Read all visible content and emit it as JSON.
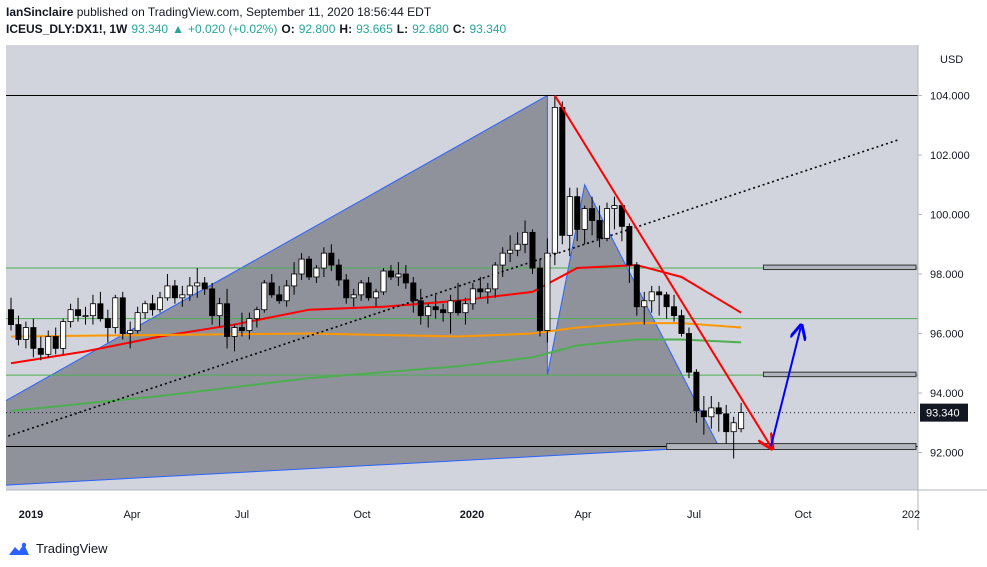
{
  "header": {
    "author": "IanSinclaire",
    "published": "published on TradingView.com, September 11, 2020 18:56:44 EDT",
    "symbol": "ICEUS_DLY:DX1!, 1W",
    "last": "93.340",
    "arrow": "▲",
    "change": "+0.020 (+0.02%)",
    "o_label": "O:",
    "o": "92.800",
    "h_label": "H:",
    "h": "93.665",
    "l_label": "L:",
    "l": "92.680",
    "c_label": "C:",
    "c": "93.340"
  },
  "footer": {
    "brand": "TradingView",
    "logo_icon": "tradingview-logo-icon"
  },
  "colors": {
    "background": "#d1d4dc",
    "bull_candle": "#ffffff",
    "bear_candle": "#000000",
    "pattern_fill": "#787b86",
    "pattern_edge": "#2962ff",
    "ma_red": "#ff0000",
    "ma_orange": "#ff9800",
    "ma_green": "#4caf50",
    "trendline_red": "#ff0000",
    "projection_blue": "#0000ff",
    "hline_green": "#4caf50",
    "price_tag_bg": "#131722"
  },
  "chart_data": {
    "type": "candlestick",
    "currency": "USD",
    "ylim": [
      90.6,
      105.4
    ],
    "y_ticks": [
      "104.000",
      "102.000",
      "100.000",
      "98.000",
      "96.000",
      "94.000",
      "92.000"
    ],
    "x_ticks": [
      "2019",
      "Apr",
      "Jul",
      "Oct",
      "2020",
      "Apr",
      "Jul",
      "Oct",
      "202"
    ],
    "last_price": "93.340",
    "candles": [
      [
        96.8,
        97.2,
        96.1,
        96.3
      ],
      [
        96.3,
        96.6,
        95.6,
        95.8
      ],
      [
        95.8,
        96.4,
        95.5,
        96.2
      ],
      [
        96.2,
        96.5,
        95.2,
        95.5
      ],
      [
        95.5,
        95.9,
        95.1,
        95.3
      ],
      [
        95.3,
        96.1,
        95.2,
        95.9
      ],
      [
        95.9,
        96.2,
        95.3,
        95.5
      ],
      [
        95.5,
        96.5,
        95.3,
        96.4
      ],
      [
        96.4,
        97.0,
        96.2,
        96.8
      ],
      [
        96.8,
        97.2,
        96.4,
        96.6
      ],
      [
        96.6,
        96.9,
        96.3,
        96.6
      ],
      [
        96.6,
        97.3,
        96.3,
        97.0
      ],
      [
        97.0,
        97.4,
        96.4,
        96.5
      ],
      [
        96.5,
        96.8,
        95.7,
        96.2
      ],
      [
        96.2,
        97.3,
        96.0,
        97.2
      ],
      [
        97.2,
        97.4,
        95.8,
        96.0
      ],
      [
        96.0,
        96.4,
        95.5,
        96.1
      ],
      [
        96.1,
        96.9,
        96.0,
        96.7
      ],
      [
        96.7,
        97.1,
        96.5,
        97.0
      ],
      [
        97.0,
        97.3,
        96.6,
        96.8
      ],
      [
        96.8,
        97.4,
        96.7,
        97.2
      ],
      [
        97.2,
        98.0,
        97.1,
        97.6
      ],
      [
        97.6,
        97.8,
        97.0,
        97.2
      ],
      [
        97.2,
        97.6,
        96.9,
        97.3
      ],
      [
        97.3,
        97.9,
        97.1,
        97.6
      ],
      [
        97.6,
        98.2,
        97.2,
        97.7
      ],
      [
        97.7,
        97.9,
        97.3,
        97.5
      ],
      [
        97.5,
        97.7,
        96.3,
        96.6
      ],
      [
        96.6,
        97.2,
        96.2,
        97.0
      ],
      [
        97.0,
        97.5,
        95.5,
        95.9
      ],
      [
        95.9,
        96.3,
        95.4,
        96.2
      ],
      [
        96.2,
        96.7,
        95.9,
        96.1
      ],
      [
        96.1,
        96.7,
        95.8,
        96.5
      ],
      [
        96.5,
        96.9,
        96.2,
        96.8
      ],
      [
        96.8,
        97.8,
        96.7,
        97.7
      ],
      [
        97.7,
        98.0,
        97.2,
        97.3
      ],
      [
        97.3,
        97.6,
        97.0,
        97.1
      ],
      [
        97.1,
        97.8,
        96.9,
        97.6
      ],
      [
        97.6,
        98.4,
        97.3,
        98.0
      ],
      [
        98.0,
        98.7,
        97.8,
        98.5
      ],
      [
        98.5,
        98.6,
        97.8,
        97.9
      ],
      [
        97.9,
        98.3,
        97.7,
        98.2
      ],
      [
        98.2,
        98.9,
        97.9,
        98.7
      ],
      [
        98.7,
        99.0,
        98.1,
        98.3
      ],
      [
        98.3,
        98.5,
        97.6,
        97.8
      ],
      [
        97.8,
        98.0,
        97.0,
        97.2
      ],
      [
        97.2,
        97.5,
        96.9,
        97.3
      ],
      [
        97.3,
        97.8,
        97.1,
        97.7
      ],
      [
        97.7,
        97.9,
        97.1,
        97.2
      ],
      [
        97.2,
        97.5,
        96.9,
        97.4
      ],
      [
        97.4,
        98.2,
        97.3,
        98.1
      ],
      [
        98.1,
        98.3,
        97.8,
        97.9
      ],
      [
        97.9,
        98.4,
        97.6,
        98.0
      ],
      [
        98.0,
        98.3,
        97.5,
        97.7
      ],
      [
        97.7,
        97.9,
        96.7,
        97.1
      ],
      [
        97.1,
        97.5,
        96.3,
        96.6
      ],
      [
        96.6,
        97.0,
        96.2,
        96.9
      ],
      [
        96.9,
        97.3,
        96.5,
        96.8
      ],
      [
        96.8,
        97.0,
        96.4,
        96.7
      ],
      [
        96.7,
        97.3,
        96.0,
        97.1
      ],
      [
        97.1,
        97.7,
        96.6,
        96.7
      ],
      [
        96.7,
        97.2,
        96.3,
        97.0
      ],
      [
        97.0,
        97.7,
        96.8,
        97.5
      ],
      [
        97.5,
        97.9,
        97.2,
        97.4
      ],
      [
        97.4,
        97.7,
        97.0,
        97.5
      ],
      [
        97.5,
        98.4,
        97.2,
        98.3
      ],
      [
        98.3,
        98.9,
        97.9,
        98.7
      ],
      [
        98.7,
        99.3,
        98.4,
        98.8
      ],
      [
        98.8,
        99.4,
        98.6,
        99.0
      ],
      [
        99.0,
        99.8,
        98.7,
        99.4
      ],
      [
        99.4,
        99.5,
        98.0,
        98.2
      ],
      [
        98.2,
        98.5,
        95.9,
        96.1
      ],
      [
        96.1,
        99.2,
        95.7,
        98.7
      ],
      [
        98.7,
        104.0,
        98.3,
        103.6
      ],
      [
        103.6,
        103.8,
        99.0,
        99.3
      ],
      [
        99.3,
        100.9,
        98.6,
        100.6
      ],
      [
        100.6,
        100.9,
        99.1,
        99.5
      ],
      [
        99.5,
        100.3,
        99.0,
        100.2
      ],
      [
        100.2,
        100.6,
        99.3,
        99.8
      ],
      [
        99.8,
        100.3,
        98.9,
        99.2
      ],
      [
        99.2,
        100.4,
        99.1,
        100.2
      ],
      [
        100.2,
        100.6,
        99.5,
        100.3
      ],
      [
        100.3,
        100.4,
        99.1,
        99.6
      ],
      [
        99.6,
        99.7,
        97.7,
        98.3
      ],
      [
        98.3,
        98.4,
        96.6,
        96.9
      ],
      [
        96.9,
        97.4,
        96.3,
        97.1
      ],
      [
        97.1,
        97.6,
        96.7,
        97.4
      ],
      [
        97.4,
        97.6,
        96.6,
        97.3
      ],
      [
        97.3,
        97.4,
        96.5,
        96.9
      ],
      [
        96.9,
        97.3,
        96.4,
        96.6
      ],
      [
        96.6,
        96.8,
        95.9,
        96.0
      ],
      [
        96.0,
        96.2,
        94.5,
        94.7
      ],
      [
        94.7,
        94.8,
        93.0,
        93.4
      ],
      [
        93.4,
        93.9,
        92.6,
        93.2
      ],
      [
        93.2,
        93.9,
        92.8,
        93.5
      ],
      [
        93.5,
        93.7,
        92.7,
        93.3
      ],
      [
        93.3,
        93.6,
        92.3,
        92.7
      ],
      [
        92.7,
        93.2,
        91.8,
        93.0
      ],
      [
        92.8,
        93.665,
        92.68,
        93.34
      ]
    ],
    "moving_averages": [
      {
        "color": "#ff0000",
        "points": [
          [
            0,
            95.0
          ],
          [
            10,
            95.4
          ],
          [
            20,
            95.9
          ],
          [
            30,
            96.3
          ],
          [
            40,
            96.8
          ],
          [
            50,
            96.9
          ],
          [
            60,
            97.1
          ],
          [
            70,
            97.4
          ],
          [
            76,
            98.2
          ],
          [
            84,
            98.3
          ],
          [
            90,
            97.9
          ],
          [
            94,
            97.3
          ],
          [
            98,
            96.7
          ]
        ]
      },
      {
        "color": "#ff9800",
        "points": [
          [
            0,
            95.9
          ],
          [
            20,
            95.95
          ],
          [
            40,
            96.0
          ],
          [
            60,
            95.9
          ],
          [
            70,
            96.0
          ],
          [
            76,
            96.2
          ],
          [
            84,
            96.35
          ],
          [
            90,
            96.35
          ],
          [
            98,
            96.2
          ]
        ]
      },
      {
        "color": "#4caf50",
        "points": [
          [
            0,
            93.4
          ],
          [
            20,
            93.9
          ],
          [
            40,
            94.5
          ],
          [
            60,
            94.9
          ],
          [
            70,
            95.2
          ],
          [
            76,
            95.6
          ],
          [
            84,
            95.8
          ],
          [
            90,
            95.8
          ],
          [
            98,
            95.7
          ]
        ]
      }
    ],
    "harmonic_pattern": {
      "points": [
        [
          -1,
          93.7
        ],
        [
          72,
          104.0
        ],
        [
          72,
          94.6
        ],
        [
          77,
          101.0
        ],
        [
          95,
          92.2
        ],
        [
          -1,
          90.9
        ]
      ]
    },
    "support_level": 92.2,
    "resistance_level": 104.0,
    "green_levels": [
      98.2,
      96.5,
      94.6
    ],
    "red_trendline": [
      [
        73,
        104.0
      ],
      [
        102,
        92.2
      ]
    ],
    "dotted_trendline": [
      [
        -1,
        92.5
      ],
      [
        119,
        102.5
      ]
    ],
    "blue_projection": [
      [
        102,
        92.2
      ],
      [
        106,
        96.2
      ]
    ],
    "zones": [
      [
        101,
        98.15,
        98.3
      ],
      [
        101,
        94.55,
        94.7
      ],
      [
        88,
        92.1,
        92.3
      ]
    ]
  }
}
